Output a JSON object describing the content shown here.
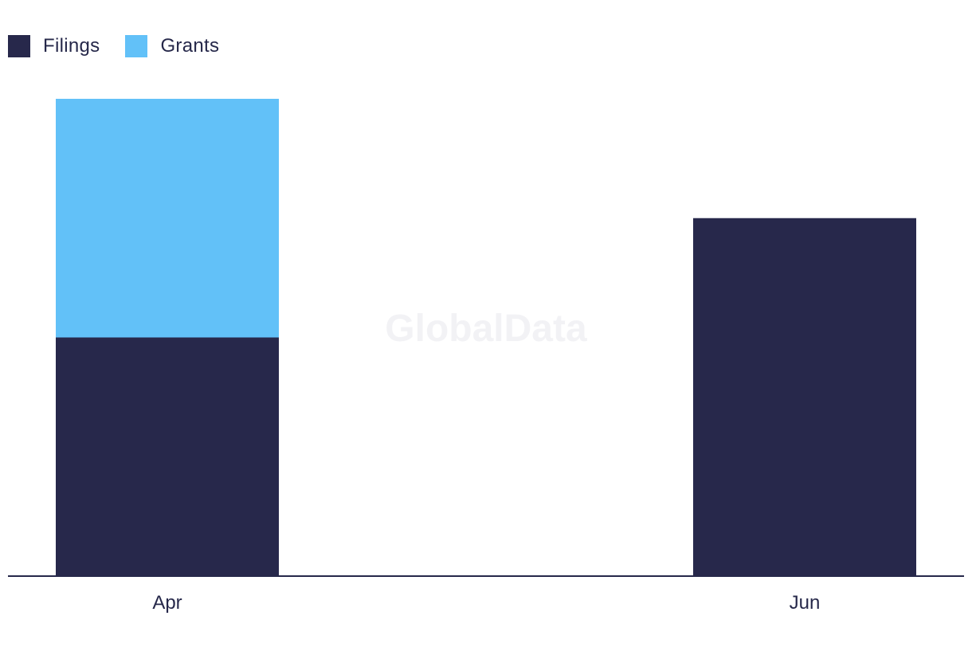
{
  "chart_data": {
    "type": "bar",
    "stacked": true,
    "categories": [
      "Apr",
      "Jun"
    ],
    "series": [
      {
        "name": "Filings",
        "values": [
          2,
          3
        ],
        "color": "#27284b"
      },
      {
        "name": "Grants",
        "values": [
          2,
          0
        ],
        "color": "#62c1f8"
      }
    ],
    "title": "",
    "xlabel": "",
    "ylabel": "",
    "ylim": [
      0,
      4
    ],
    "grid": false,
    "legend": "top-left",
    "watermark": "GlobalData"
  }
}
